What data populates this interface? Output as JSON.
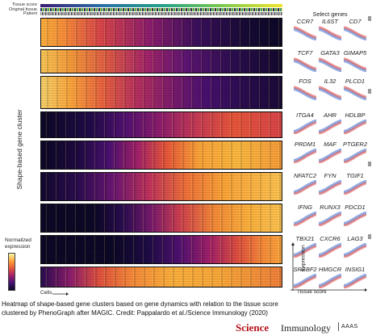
{
  "header_labels": {
    "tissue_score": "Tissue score",
    "original_tissue": "Original tissue",
    "patient": "Patient"
  },
  "y_axis_label": "Shape-based gene cluster",
  "select_genes_title": "Select genes",
  "gene_rows": [
    [
      "CCR7",
      "IL6ST",
      "CD7"
    ],
    [
      "TCF7",
      "GATA3",
      "GIMAP5"
    ],
    [
      "FOS",
      "IL32",
      "PLCD1"
    ],
    [
      "ITGA4",
      "AHR",
      "HDLBP"
    ],
    [
      "PRDM1",
      "MAF",
      "PTGER2"
    ],
    [
      "NFATC2",
      "FYN",
      "TGIF1"
    ],
    [
      "IFNG",
      "RUNX3",
      "PDCD1"
    ],
    [
      "TBX21",
      "CXCR6",
      "LAG3"
    ],
    [
      "SREBF2",
      "HMGCR",
      "INSIG1"
    ]
  ],
  "legend": {
    "title_line1": "Normalized",
    "title_line2": "expression"
  },
  "axis": {
    "cells": "Cells",
    "expression": "Expression",
    "tissue_score": "Tissue score"
  },
  "caption_line1": "Heatmap of shape-based gene clusters based on gene dynamics with relation to the tissue score",
  "caption_line2": "clustered by PhenoGraph after MAGIC. Credit: Pappalardo et al./Science Immunology (2020)",
  "brand": {
    "science": "Science",
    "immunology": "Immunology",
    "aaas": "AAAS"
  },
  "colors": {
    "heat_low": "#0c0826",
    "heat_mid": "#a2206a",
    "heat_high": "#fca438",
    "heat_peak": "#f7f7a6",
    "trend_red": "#d63a3a",
    "trend_blue": "#3a66c9"
  }
}
